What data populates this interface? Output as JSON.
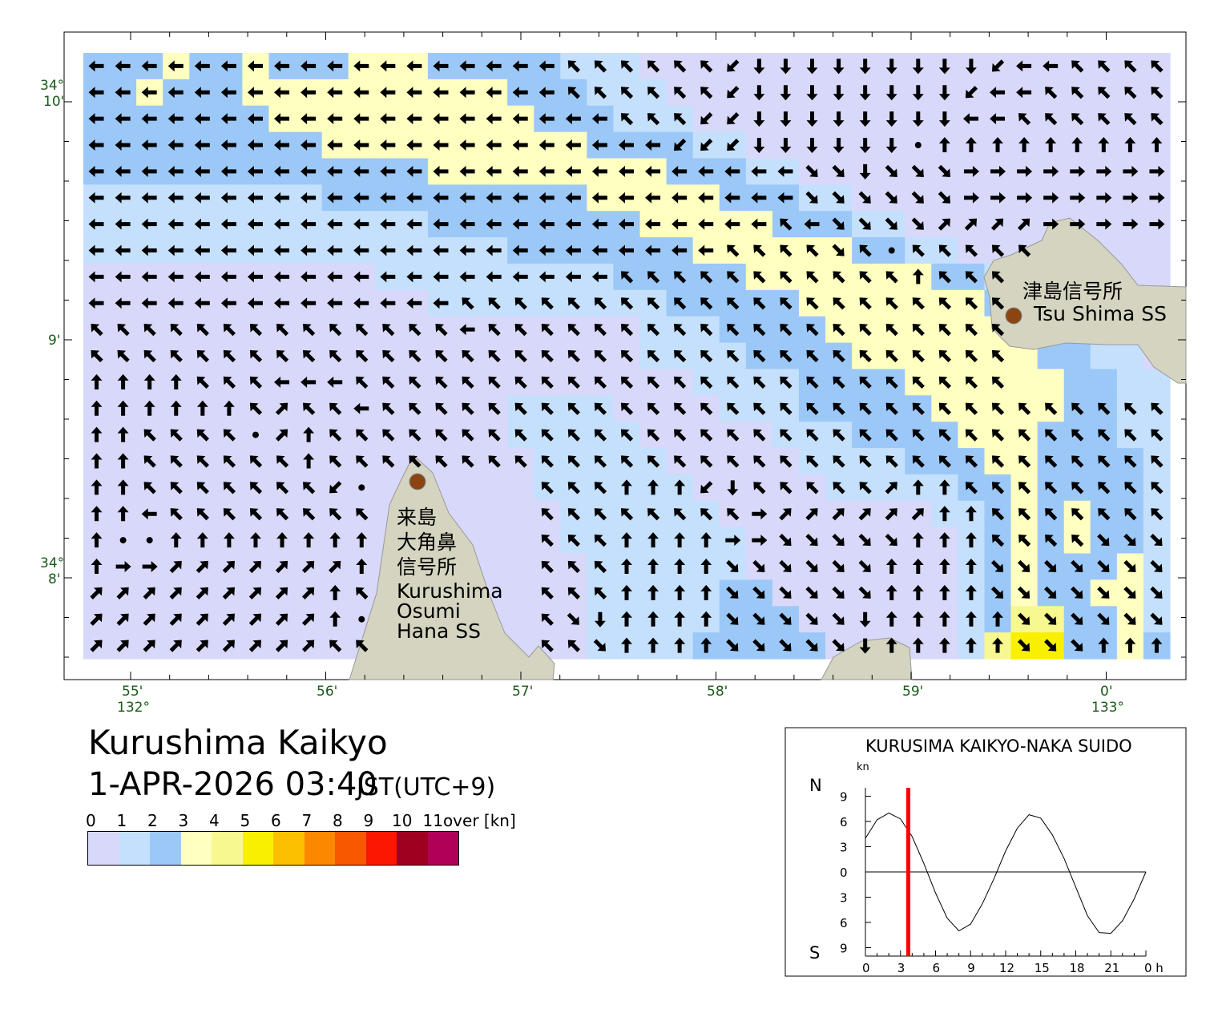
{
  "title": "Kurushima Kaikyo",
  "datetime": "1-APR-2026 03:40",
  "timezone": "JST(UTC+9)",
  "legend": {
    "labels": [
      "0",
      "1",
      "2",
      "3",
      "4",
      "5",
      "6",
      "7",
      "8",
      "9",
      "10",
      "11over [kn]"
    ],
    "colors": [
      "#d8d8fa",
      "#c4e0fc",
      "#9cc8f8",
      "#ffffc0",
      "#f8f890",
      "#f8f000",
      "#fcc000",
      "#fc8800",
      "#f85800",
      "#fc1800",
      "#a00020",
      "#b00058"
    ]
  },
  "axes": {
    "lon": [
      {
        "label": "55'"
      },
      {
        "label": "56'"
      },
      {
        "label": "57'"
      },
      {
        "label": "58'"
      },
      {
        "label": "59'"
      },
      {
        "label": "0'"
      }
    ],
    "lon_deg": [
      "132°",
      "133°"
    ],
    "lat": [
      {
        "deg": "34°",
        "min": "10'"
      },
      {
        "deg": "",
        "min": "9'"
      },
      {
        "deg": "34°",
        "min": "8'"
      }
    ]
  },
  "places": {
    "tsushima": {
      "ja": "津島信号所",
      "en": "Tsu Shima SS"
    },
    "kurushima": {
      "ja": [
        "来島",
        "大角鼻",
        "信号所"
      ],
      "en": [
        "Kurushima",
        "Osumi",
        "Hana SS"
      ]
    }
  },
  "speed_grid": [
    "22232232223332222211100000000000000000000",
    "22322233333333332221110000000000000000000",
    "22222223333333333222111000000000000000000",
    "22222222233333333332222110000000000000000",
    "22222222222223333333332221100000000000000",
    "11111111122222222223333322211000000000000",
    "11111111111112222222233333222110000000000",
    "11111111111111112222222333333221100000000",
    "00000000000111111111222223333333221000000",
    "00000000000001111111112222233333332100000",
    "00000000000000000000011122223333333221000",
    "00000000000000000000011112222333333322110",
    "00000000000000000000000111122223333332211",
    "00000000000000001111000011122222333332211",
    "00000000000000001111100000111222233322211",
    "00000000000000000111110000011112223322221",
    "00000000000000000111111000001111122322221",
    "00000000000000000011111100000000112323221",
    "00000000000000000011111110000000012323221",
    "00000000000000000001111110000000012322231",
    "00000000000000000001111122000000012322331",
    "00000000000000000001111122200000012442231",
    "00000000000000000001111222220000014552232"
  ],
  "direction_grid": [
    "WWWWWWWWWWWWWWWWWWqqqqqqzSSSSSSSSSzWWqqqqq",
    "WWWWWWWWWWWWWWWWWWqqqqqqzSSSSSSSSzWWqqqqq",
    "WWWWWWWWWWWWWWWWWWWWqqqzzSSSSSSSSWWqqqqq",
    "WWWWWWWWWWWWWWWWWWWWWWzzzSSSSSSoNNNNN",
    "WWWWWWWWWWWWWWWWWWWWWWWWWWWccScccEEEE",
    "WWWWWWWWWWWWWWWWWWWWWWWWWWWccccccEEEEE",
    "WWWWWWWWWWWWWWWWWWWWWWWWWWqWcccceeeeE",
    "WWWWWWWWWWWWWWWWWWWWWWWWqqqqcqoqqqqqqqq",
    "WWWWWWWWWWWWWWWWWWWWqqqqqqqqqqqNqqqqqqqq",
    "WWWWWWWWWWWWWWqqqqqqqqqqqqqqqqqqqqqqqqqq",
    "qqqqqqqqqqqqqqWqqqqqqqqqqqqqqqqqqqqqqqqq",
    "qqqqqqqqqqqqqqqqqqqqqqqqqqqqqqqqqqqqqqqqq",
    "NNNNqqqWWWqqqqqqqqqqqqqqqqqqqqqqqqqqqqqqq",
    "NNNNNNqeqqWqqqqqqqqqqqqqqqqqqqqqqqqqqqqqq",
    "NNqqqqoeNqqqqqqqqqqqqqqqqqqqqqqqqqqqqqqqq",
    "NNqqqqqqNqqqqqqqqqqqqqqqqqqqqqqqqqqqqqqqq",
    "NNqqqqqqqzoqqqqqqqqqNNNzSqqqqqeNNqqqqqq",
    "NNWqqqqqqqqqqqqqqqqqqqqqqEeeeeeeNNqqqqqq",
    "NooNNNNNNNNqqqqqqqqqNNNNEEcccccNNNqqqqc",
    "NEEeeeeeeeNqqqqqqqqqNNNNccccccNNNNcccc",
    "eeeeeeeeeNqqqqqqqqqqNNNNccccccNNNNcccc",
    "eeeeeeeeeNoqqqqqqqcSNNNNcccccSNNNNNcccc",
    "eeeeeeeeeqqqqqqqqqqcNNNNcccccSNNNNNcccN"
  ],
  "tide_chart": {
    "type": "line",
    "title": "KURUSIMA KAIKYO-NAKA SUIDO",
    "unit": "kn",
    "north": "N",
    "south": "S",
    "x_ticks": [
      "0",
      "3",
      "6",
      "9",
      "12",
      "15",
      "18",
      "21",
      "0 h"
    ],
    "y_ticks": [
      "9",
      "6",
      "3",
      "0",
      "3",
      "6",
      "9"
    ],
    "hours": [
      0,
      1,
      2,
      3,
      4,
      5,
      6,
      7,
      8,
      9,
      10,
      11,
      12,
      13,
      14,
      15,
      16,
      17,
      18,
      19,
      20,
      21,
      22,
      23,
      24
    ],
    "speed": [
      4.0,
      6.2,
      7.0,
      6.3,
      4.2,
      1.0,
      -2.5,
      -5.5,
      -7.0,
      -6.2,
      -3.8,
      -0.8,
      2.5,
      5.2,
      6.8,
      6.4,
      4.4,
      1.6,
      -1.8,
      -5.2,
      -7.2,
      -7.3,
      -5.8,
      -3.2,
      0
    ],
    "current_hour": 3.67,
    "marker_color": "#ff0000",
    "xlim": [
      0,
      24
    ],
    "ylim": [
      -10,
      10
    ]
  }
}
